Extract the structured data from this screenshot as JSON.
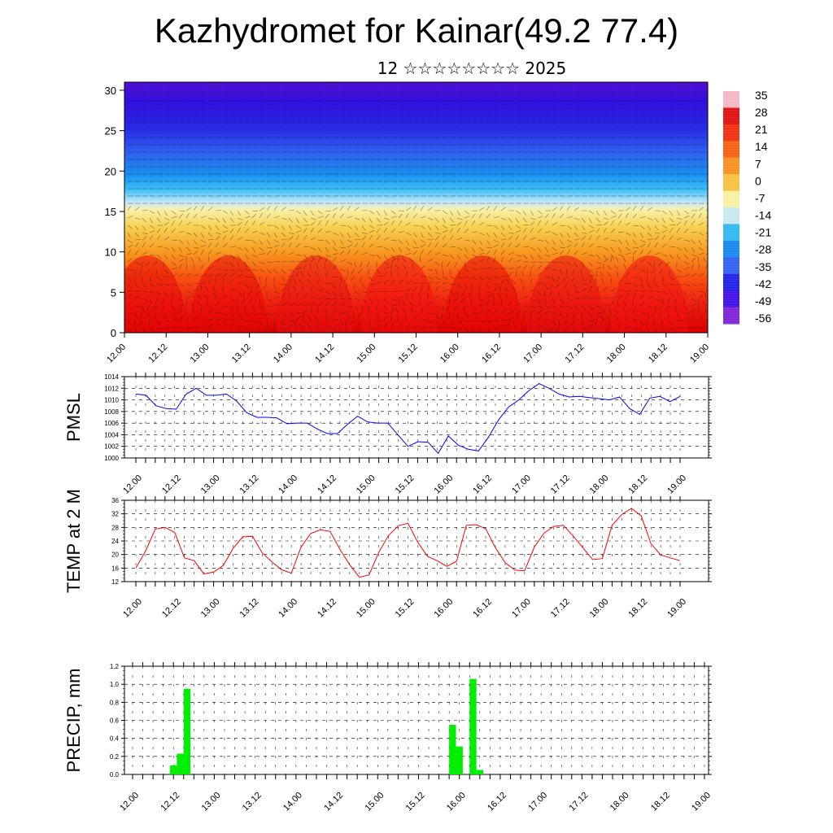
{
  "title": "Kazhydromet for Kainar(49.2 77.4)",
  "subtitle": "12 ☆☆☆☆☆☆☆☆ 2025",
  "time_labels": [
    "12.00",
    "12.12",
    "13.00",
    "13.12",
    "14.00",
    "14.12",
    "15.00",
    "15.12",
    "16.00",
    "16.12",
    "17.00",
    "17.12",
    "18.00",
    "18.12",
    "19.00"
  ],
  "chart_data": [
    {
      "type": "heatmap",
      "title": "",
      "xlabel": "",
      "ylabel": "",
      "x": [
        "12.00",
        "12.12",
        "13.00",
        "13.12",
        "14.00",
        "14.12",
        "15.00",
        "15.12",
        "16.00",
        "16.12",
        "17.00",
        "17.12",
        "18.00",
        "18.12",
        "19.00"
      ],
      "y_ticks": [
        0,
        5,
        10,
        15,
        20,
        25,
        30
      ],
      "ylim": [
        0,
        31
      ],
      "colorbar_labels": [
        "35",
        "28",
        "21",
        "14",
        "7",
        "0",
        "-7",
        "-14",
        "-21",
        "-28",
        "-35",
        "-42",
        "-49",
        "-56"
      ],
      "colorbar_colors": [
        "#f4b8c4",
        "#e01010",
        "#f03010",
        "#f86010",
        "#f89020",
        "#f8c040",
        "#f8f0a0",
        "#c8e8f0",
        "#30b8f0",
        "#1888f0",
        "#3060f0",
        "#2020e8",
        "#4010e8",
        "#8020d8"
      ],
      "temperature_profile": [
        {
          "height": 0,
          "value": 33
        },
        {
          "height": 5,
          "value": 20
        },
        {
          "height": 10,
          "value": 8
        },
        {
          "height": 15,
          "value": -8
        },
        {
          "height": 20,
          "value": -24
        },
        {
          "height": 25,
          "value": -48
        },
        {
          "height": 30,
          "value": -56
        }
      ],
      "overlay": "wind barbs"
    },
    {
      "type": "line",
      "ylabel": "PMSL",
      "ylim": [
        1000,
        1014
      ],
      "y_ticks": [
        "1000",
        "1002",
        "1004",
        "1006",
        "1008",
        "1010",
        "1012",
        "1014"
      ],
      "x_labels": [
        "12.00",
        "12.12",
        "13.00",
        "13.12",
        "14.00",
        "14.12",
        "15.00",
        "15.12",
        "16.00",
        "16.12",
        "17.00",
        "17.12",
        "18.00",
        "18.12",
        "19.00"
      ],
      "color": "#0000ff",
      "grid": true,
      "values": [
        1011,
        1010.8,
        1009,
        1008.5,
        1008.4,
        1011,
        1012,
        1010.8,
        1010.8,
        1011,
        1009.8,
        1007.8,
        1007,
        1007,
        1006.9,
        1005.9,
        1006,
        1006,
        1005,
        1004.2,
        1004.2,
        1005.8,
        1007.2,
        1006.2,
        1006,
        1006,
        1004,
        1002,
        1002.8,
        1002.7,
        1000.8,
        1003.8,
        1002.2,
        1001.5,
        1001.2,
        1003.6,
        1006.6,
        1008.8,
        1010,
        1011.6,
        1012.8,
        1012,
        1011,
        1010.5,
        1010.6,
        1010.4,
        1010.2,
        1010,
        1010.5,
        1008.5,
        1007.5,
        1010.3,
        1010.6,
        1009.7,
        1010.6
      ]
    },
    {
      "type": "line",
      "ylabel": "TEMP at 2 M",
      "ylim": [
        12,
        36
      ],
      "y_ticks": [
        "12",
        "16",
        "20",
        "24",
        "28",
        "32",
        "36"
      ],
      "x_labels": [
        "12.00",
        "12.12",
        "13.00",
        "13.12",
        "14.00",
        "14.12",
        "15.00",
        "15.12",
        "16.00",
        "16.12",
        "17.00",
        "17.12",
        "18.00",
        "18.12",
        "19.00"
      ],
      "color": "#ff0000",
      "grid": true,
      "values": [
        16,
        21,
        27.5,
        28,
        26.5,
        19,
        18.2,
        14.3,
        14.8,
        16.8,
        21.8,
        25.2,
        25.4,
        20.5,
        17.8,
        15.5,
        14.5,
        22.2,
        26.2,
        27.3,
        26.8,
        21.5,
        17,
        13.3,
        14,
        20.7,
        25.6,
        28.5,
        29.2,
        23.7,
        19.5,
        18.2,
        16.5,
        18,
        28.6,
        28.8,
        27.6,
        22,
        17.6,
        15.4,
        15.2,
        22.2,
        26.3,
        28.3,
        28.6,
        25.5,
        22,
        18.5,
        18.8,
        28.6,
        31.8,
        33.6,
        31.4,
        23.2,
        19.9,
        19,
        18.2
      ]
    },
    {
      "type": "bar",
      "ylabel": "PRECIP, mm",
      "ylim": [
        0,
        1.2
      ],
      "y_ticks": [
        "0.0",
        "0.2",
        "0.4",
        "0.6",
        "0.8",
        "1.0",
        "1.2"
      ],
      "x_labels": [
        "12.00",
        "12.12",
        "13.00",
        "13.12",
        "14.00",
        "14.12",
        "15.00",
        "15.12",
        "16.00",
        "16.12",
        "17.00",
        "17.12",
        "18.00",
        "18.12",
        "19.00"
      ],
      "color": "#00ee00",
      "grid": true,
      "values": [
        0,
        0,
        0,
        0,
        0,
        0,
        0.1,
        0.23,
        0.95,
        0,
        0,
        0,
        0,
        0,
        0,
        0,
        0,
        0,
        0,
        0,
        0,
        0,
        0,
        0,
        0,
        0,
        0,
        0,
        0,
        0,
        0,
        0,
        0,
        0,
        0,
        0,
        0,
        0,
        0,
        0,
        0,
        0,
        0,
        0,
        0,
        0,
        0,
        0.55,
        0.31,
        0,
        1.06,
        0.05,
        0,
        0,
        0,
        0,
        0,
        0,
        0,
        0,
        0,
        0,
        0,
        0,
        0,
        0,
        0,
        0,
        0,
        0,
        0,
        0,
        0,
        0,
        0,
        0,
        0,
        0,
        0,
        0,
        0,
        0,
        0,
        0,
        0
      ]
    }
  ]
}
